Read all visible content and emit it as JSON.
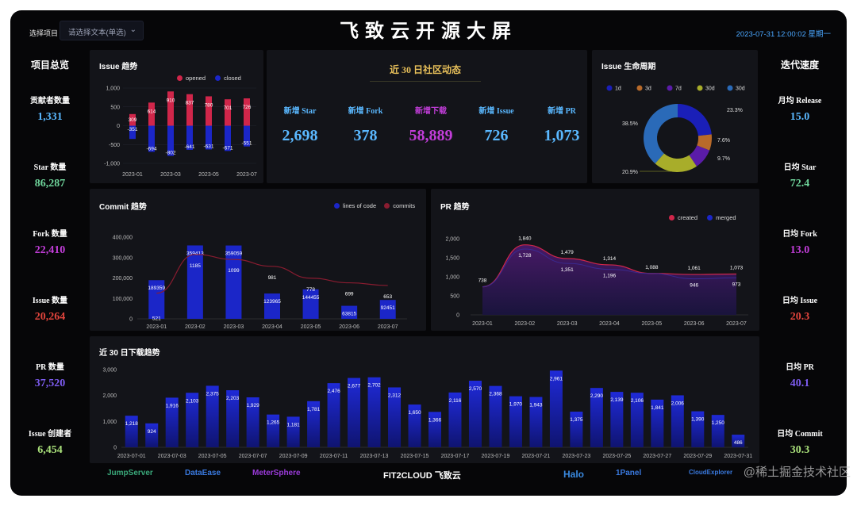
{
  "header": {
    "select_label": "选择项目",
    "select_placeholder": "请选择文本(单选)",
    "title": "飞致云开源大屏",
    "datetime": "2023-07-31 12:00:02 星期一"
  },
  "left": {
    "title": "项目总览",
    "stats": [
      {
        "label": "贡献者数量",
        "value": "1,331",
        "color": "#5ab8ff"
      },
      {
        "label": "Star 数量",
        "value": "86,287",
        "color": "#6ed39a"
      },
      {
        "label": "Fork 数量",
        "value": "22,410",
        "color": "#c13dd8"
      },
      {
        "label": "Issue 数量",
        "value": "20,264",
        "color": "#e0443c"
      },
      {
        "label": "PR 数量",
        "value": "37,520",
        "color": "#7d5cf0"
      },
      {
        "label": "Issue 创建者",
        "value": "6,454",
        "color": "#a9e07a"
      }
    ]
  },
  "right": {
    "title": "迭代速度",
    "stats": [
      {
        "label": "月均 Release",
        "value": "15.0",
        "color": "#5ab8ff"
      },
      {
        "label": "日均 Star",
        "value": "72.4",
        "color": "#6ed39a"
      },
      {
        "label": "日均 Fork",
        "value": "13.0",
        "color": "#c13dd8"
      },
      {
        "label": "日均 Issue",
        "value": "20.3",
        "color": "#e0443c"
      },
      {
        "label": "日均 PR",
        "value": "40.1",
        "color": "#7d5cf0"
      },
      {
        "label": "日均 Commit",
        "value": "30.3",
        "color": "#a9e07a"
      }
    ]
  },
  "community": {
    "title": "近 30 日社区动态",
    "metrics": [
      {
        "label": "新增 Star",
        "value": "2,698",
        "label_color": "#5ab8ff",
        "value_color": "#5ab8ff"
      },
      {
        "label": "新增 Fork",
        "value": "378",
        "label_color": "#5ab8ff",
        "value_color": "#5ab8ff"
      },
      {
        "label": "新增下载",
        "value": "58,889",
        "label_color": "#c13dd8",
        "value_color": "#c13dd8"
      },
      {
        "label": "新增 Issue",
        "value": "726",
        "label_color": "#5ab8ff",
        "value_color": "#5ab8ff"
      },
      {
        "label": "新增 PR",
        "value": "1,073",
        "label_color": "#5ab8ff",
        "value_color": "#5ab8ff"
      }
    ]
  },
  "footer": {
    "logos": [
      "JumpServer",
      "DataEase",
      "MeterSphere",
      "FIT2CLOUD 飞致云",
      "Halo",
      "1Panel",
      "CloudExplorer"
    ],
    "watermark": "@稀土掘金技术社区"
  },
  "chart_data": [
    {
      "id": "issue_trend",
      "type": "bar",
      "title": "Issue 趋势",
      "categories": [
        "2023-01",
        "2023-02",
        "2023-03",
        "2023-04",
        "2023-05",
        "2023-06",
        "2023-07"
      ],
      "x_tick_labels": [
        "2023-01",
        "2023-03",
        "2023-05",
        "2023-07"
      ],
      "series": [
        {
          "name": "opened",
          "color": "#d0264a",
          "values": [
            309,
            614,
            910,
            837,
            780,
            701,
            726
          ]
        },
        {
          "name": "closed",
          "color": "#1b26c8",
          "values": [
            -351,
            -694,
            -802,
            -641,
            -631,
            -671,
            -551
          ]
        }
      ],
      "ylim": [
        -1000,
        1000
      ],
      "yticks": [
        1000,
        500,
        0,
        -500,
        -1000
      ],
      "ytick_labels": [
        "1,000",
        "500",
        "0",
        "-500",
        "-1,000"
      ]
    },
    {
      "id": "issue_lifecycle",
      "type": "pie",
      "title": "Issue 生命周期",
      "labels": [
        "1d",
        "3d",
        "7d",
        "30d",
        "30d"
      ],
      "colors": [
        "#1a1fb8",
        "#b86a2a",
        "#5a1ca8",
        "#a8ad2a",
        "#2a6ab8"
      ],
      "values": [
        23.3,
        7.6,
        9.7,
        20.9,
        38.5
      ],
      "value_labels": [
        "23.3%",
        "7.6%",
        "9.7%",
        "20.9%",
        "38.5%"
      ]
    },
    {
      "id": "commit_trend",
      "type": "bar",
      "title": "Commit 趋势",
      "categories": [
        "2023-01",
        "2023-02",
        "2023-03",
        "2023-04",
        "2023-05",
        "2023-06",
        "2023-07"
      ],
      "series": [
        {
          "name": "lines of code",
          "color": "#1b26c8",
          "values": [
            189359,
            359413,
            359059,
            123965,
            144455,
            63815,
            92451
          ]
        },
        {
          "name": "commits",
          "color": "#8a1c30",
          "values": [
            521,
            1185,
            1099,
            981,
            778,
            699,
            653
          ]
        }
      ],
      "ylim": [
        0,
        400000
      ],
      "yticks": [
        0,
        100000,
        200000,
        300000,
        400000
      ],
      "ytick_labels": [
        "0",
        "100,000",
        "200,000",
        "300,000",
        "400,000"
      ]
    },
    {
      "id": "pr_trend",
      "type": "area",
      "title": "PR 趋势",
      "categories": [
        "2023-01",
        "2023-02",
        "2023-03",
        "2023-04",
        "2023-05",
        "2023-06",
        "2023-07"
      ],
      "series": [
        {
          "name": "created",
          "color": "#d0264a",
          "values": [
            738,
            1840,
            1479,
            1314,
            1088,
            1061,
            1073
          ]
        },
        {
          "name": "merged",
          "color": "#1b26c8",
          "values": [
            738,
            1728,
            1351,
            1196,
            1088,
            946,
            973
          ]
        }
      ],
      "ylim": [
        0,
        2000
      ],
      "yticks": [
        0,
        500,
        1000,
        1500,
        2000
      ],
      "ytick_labels": [
        "0",
        "500",
        "1,000",
        "1,500",
        "2,000"
      ]
    },
    {
      "id": "downloads_30d",
      "type": "bar",
      "title": "近 30 日下载趋势",
      "categories": [
        "2023-07-01",
        "2023-07-02",
        "2023-07-03",
        "2023-07-04",
        "2023-07-05",
        "2023-07-06",
        "2023-07-07",
        "2023-07-08",
        "2023-07-09",
        "2023-07-10",
        "2023-07-11",
        "2023-07-12",
        "2023-07-13",
        "2023-07-14",
        "2023-07-15",
        "2023-07-16",
        "2023-07-17",
        "2023-07-18",
        "2023-07-19",
        "2023-07-20",
        "2023-07-21",
        "2023-07-22",
        "2023-07-23",
        "2023-07-24",
        "2023-07-25",
        "2023-07-26",
        "2023-07-27",
        "2023-07-28",
        "2023-07-29",
        "2023-07-30",
        "2023-07-31"
      ],
      "x_tick_labels": [
        "2023-07-01",
        "2023-07-03",
        "2023-07-05",
        "2023-07-07",
        "2023-07-09",
        "2023-07-11",
        "2023-07-13",
        "2023-07-15",
        "2023-07-17",
        "2023-07-19",
        "2023-07-21",
        "2023-07-23",
        "2023-07-25",
        "2023-07-27",
        "2023-07-29",
        "2023-07-31"
      ],
      "values": [
        1218,
        924,
        1916,
        2103,
        2375,
        2203,
        1929,
        1265,
        1181,
        1781,
        2476,
        2677,
        2702,
        2312,
        1650,
        1366,
        2116,
        2570,
        2368,
        1970,
        1943,
        2961,
        1375,
        2290,
        2139,
        2106,
        1841,
        2006,
        1390,
        1250,
        486
      ],
      "value_labels": [
        "1,218",
        "924",
        "1,916",
        "2,103",
        "2,375",
        "2,203",
        "1,929",
        "1,265",
        "1,181",
        "1,781",
        "2,476",
        "2,677",
        "2,702",
        "2,312",
        "1,650",
        "1,366",
        "2,116",
        "2,570",
        "2,368",
        "1,970",
        "1,943",
        "2,961",
        "1,375",
        "2,290",
        "2,139",
        "2,106",
        "1,841",
        "2,006",
        "1,390",
        "1,250",
        "486"
      ],
      "ylim": [
        0,
        3000
      ],
      "yticks": [
        0,
        1000,
        2000,
        3000
      ],
      "ytick_labels": [
        "0",
        "1,000",
        "2,000",
        "3,000"
      ],
      "color": "#1b26c8"
    }
  ]
}
